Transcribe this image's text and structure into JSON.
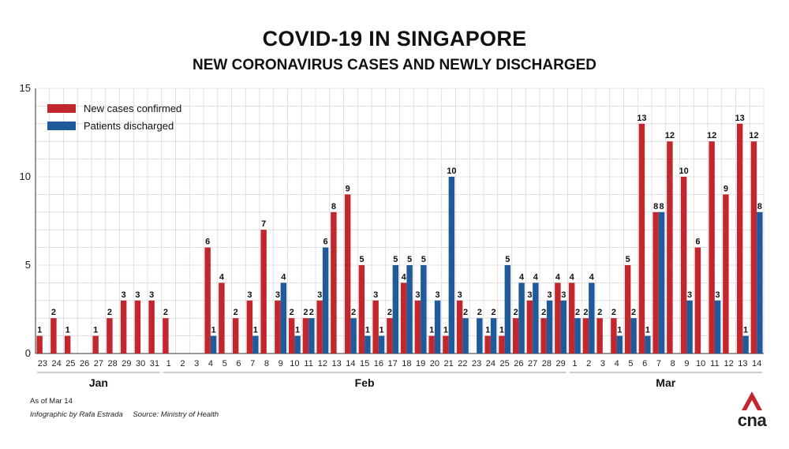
{
  "title": "COVID-19 IN SINGAPORE",
  "subtitle": "NEW CORONAVIRUS CASES AND NEWLY DISCHARGED",
  "footer": {
    "as_of": "As of Mar 14",
    "infographic": "Infographic by Rafa Estrada",
    "source": "Source: Ministry of Health"
  },
  "logo": {
    "text": "cna",
    "icon": "cna-logo-icon"
  },
  "colors": {
    "new_cases": "#c1272d",
    "discharged": "#1f5a9a",
    "grid": "#d9d9d9"
  },
  "chart_data": {
    "type": "bar",
    "ylim": [
      0,
      15
    ],
    "yticks": [
      0,
      5,
      10,
      15
    ],
    "grid": true,
    "legend_position": "top-left",
    "categories": [
      "23",
      "24",
      "25",
      "26",
      "27",
      "28",
      "29",
      "30",
      "31",
      "1",
      "2",
      "3",
      "4",
      "5",
      "6",
      "7",
      "8",
      "9",
      "10",
      "11",
      "12",
      "13",
      "14",
      "15",
      "16",
      "17",
      "18",
      "19",
      "20",
      "21",
      "22",
      "23",
      "24",
      "25",
      "26",
      "27",
      "28",
      "29",
      "1",
      "2",
      "3",
      "4",
      "5",
      "6",
      "7",
      "8",
      "9",
      "10",
      "11",
      "12",
      "13",
      "14"
    ],
    "month_groups": [
      {
        "label": "Jan",
        "start": 0,
        "end": 8
      },
      {
        "label": "Feb",
        "start": 9,
        "end": 37
      },
      {
        "label": "Mar",
        "start": 38,
        "end": 51
      }
    ],
    "series": [
      {
        "name": "New cases confirmed",
        "values": [
          1,
          2,
          1,
          0,
          1,
          2,
          3,
          3,
          3,
          2,
          0,
          0,
          6,
          4,
          2,
          3,
          7,
          3,
          2,
          2,
          3,
          8,
          9,
          5,
          3,
          2,
          4,
          3,
          1,
          1,
          3,
          0,
          1,
          1,
          2,
          3,
          2,
          4,
          4,
          2,
          2,
          2,
          5,
          13,
          8,
          12,
          10,
          6,
          12,
          9,
          13,
          12
        ]
      },
      {
        "name": "Patients discharged",
        "values": [
          0,
          0,
          0,
          0,
          0,
          0,
          0,
          0,
          0,
          0,
          0,
          0,
          1,
          0,
          0,
          1,
          0,
          4,
          1,
          2,
          6,
          0,
          2,
          1,
          1,
          5,
          5,
          5,
          3,
          10,
          2,
          2,
          2,
          5,
          4,
          4,
          3,
          3,
          2,
          4,
          0,
          1,
          2,
          1,
          8,
          0,
          3,
          0,
          3,
          0,
          1,
          8
        ]
      }
    ]
  }
}
